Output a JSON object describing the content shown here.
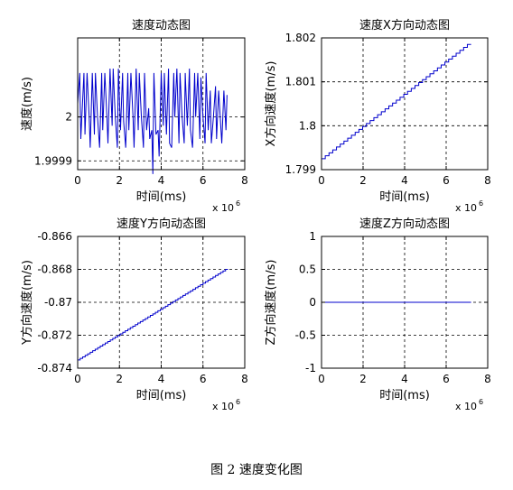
{
  "figure": {
    "caption": "图 2  速度变化图"
  },
  "chart_data": [
    {
      "type": "line",
      "title": "速度动态图",
      "xlabel": "时间(ms)",
      "ylabel": "速度(m/s)",
      "xlim": [
        0,
        8
      ],
      "ylim": [
        1.99988,
        2.00018
      ],
      "x_ticks": [
        0,
        2,
        4,
        6,
        8
      ],
      "x_tick_labels": [
        "0",
        "2",
        "4",
        "6",
        "8"
      ],
      "y_ticks": [
        1.9999,
        2.0
      ],
      "y_tick_labels": [
        "1.9999",
        "2"
      ],
      "x_exponent": {
        "base": "x 10",
        "power": "6"
      },
      "grid": true,
      "series_color": "#0000cc",
      "series": [
        {
          "x": [
            0.0,
            0.1,
            0.15,
            0.2,
            0.3,
            0.35,
            0.45,
            0.55,
            0.6,
            0.7,
            0.8,
            0.85,
            0.95,
            1.05,
            1.15,
            1.2,
            1.3,
            1.4,
            1.45,
            1.55,
            1.65,
            1.7,
            1.8,
            1.9,
            1.95,
            2.05,
            2.15,
            2.2,
            2.3,
            2.4,
            2.45,
            2.55,
            2.65,
            2.7,
            2.8,
            2.9,
            2.95,
            3.05,
            3.15,
            3.2,
            3.3,
            3.4,
            3.45,
            3.55,
            3.6,
            3.65,
            3.75,
            3.85,
            3.9,
            4.0,
            4.1,
            4.15,
            4.25,
            4.35,
            4.4,
            4.5,
            4.6,
            4.65,
            4.75,
            4.85,
            4.9,
            5.0,
            5.1,
            5.15,
            5.25,
            5.35,
            5.4,
            5.5,
            5.6,
            5.65,
            5.75,
            5.85,
            5.9,
            6.0,
            6.1,
            6.15,
            6.25,
            6.35,
            6.4,
            6.5,
            6.6,
            6.65,
            6.75,
            6.85,
            6.9,
            7.0,
            7.1,
            7.15
          ],
          "y": [
            2.00003,
            2.0001,
            1.99995,
            2.0,
            2.0001,
            1.99996,
            2.0001,
            2.0,
            1.99993,
            2.0001,
            1.99996,
            2.0001,
            2.0,
            1.99993,
            2.0001,
            1.99997,
            2.0001,
            2.0,
            1.99994,
            2.00011,
            1.99998,
            2.00011,
            2.0,
            1.99993,
            2.00011,
            1.99997,
            2.0001,
            1.99999,
            1.99993,
            2.0001,
            1.99997,
            2.0001,
            2.0,
            1.99993,
            2.00011,
            1.99997,
            2.0001,
            2.0,
            1.99993,
            2.0001,
            1.99997,
            2.00002,
            1.99995,
            1.99997,
            1.99987,
            2.0001,
            1.99996,
            1.99997,
            1.99991,
            2.0001,
            1.99998,
            2.0001,
            1.99996,
            2.00011,
            1.99994,
            1.99993,
            2.0001,
            2.0,
            2.00011,
            1.99994,
            2.0001,
            2.0,
            1.99994,
            2.0001,
            1.99998,
            2.00011,
            1.99997,
            1.99993,
            2.0001,
            2.0,
            2.0001,
            1.99995,
            2.00009,
            2.0,
            1.99994,
            2.0001,
            1.99997,
            2.00006,
            1.99994,
            2.0,
            2.00007,
            1.99995,
            2.00006,
            1.99998,
            1.99994,
            2.00006,
            1.99997,
            2.00005
          ]
        }
      ]
    },
    {
      "type": "line",
      "title": "速度X方向动态图",
      "xlabel": "时间(ms)",
      "ylabel": "X方向速度(m/s)",
      "xlim": [
        0,
        8
      ],
      "ylim": [
        1.799,
        1.802
      ],
      "x_ticks": [
        0,
        2,
        4,
        6,
        8
      ],
      "x_tick_labels": [
        "0",
        "2",
        "4",
        "6",
        "8"
      ],
      "y_ticks": [
        1.799,
        1.8,
        1.801,
        1.802
      ],
      "y_tick_labels": [
        "1.799",
        "1.8",
        "1.801",
        "1.802"
      ],
      "x_exponent": {
        "base": "x 10",
        "power": "6"
      },
      "grid": true,
      "series_color": "#0000cc",
      "series": [
        {
          "x": [
            0,
            7.2
          ],
          "y": [
            1.79925,
            1.80185
          ],
          "style": "staircase",
          "steps": 40
        }
      ]
    },
    {
      "type": "line",
      "title": "速度Y方向动态图",
      "xlabel": "时间(ms)",
      "ylabel": "Y方向速度(m/s)",
      "xlim": [
        0,
        8
      ],
      "ylim": [
        -0.874,
        -0.866
      ],
      "x_ticks": [
        0,
        2,
        4,
        6,
        8
      ],
      "x_tick_labels": [
        "0",
        "2",
        "4",
        "6",
        "8"
      ],
      "y_ticks": [
        -0.874,
        -0.872,
        -0.87,
        -0.868,
        -0.866
      ],
      "y_tick_labels": [
        "-0.874",
        "-0.872",
        "-0.87",
        "-0.868",
        "-0.866"
      ],
      "x_exponent": {
        "base": "x 10",
        "power": "6"
      },
      "grid": true,
      "series_color": "#0000cc",
      "series": [
        {
          "x": [
            0,
            7.2
          ],
          "y": [
            -0.8735,
            -0.868
          ],
          "style": "staircase",
          "steps": 60
        }
      ]
    },
    {
      "type": "line",
      "title": "速度Z方向动态图",
      "xlabel": "时间(ms)",
      "ylabel": "Z方向速度(m/s)",
      "xlim": [
        0,
        8
      ],
      "ylim": [
        -1,
        1
      ],
      "x_ticks": [
        0,
        2,
        4,
        6,
        8
      ],
      "x_tick_labels": [
        "0",
        "2",
        "4",
        "6",
        "8"
      ],
      "y_ticks": [
        -1,
        -0.5,
        0,
        0.5,
        1
      ],
      "y_tick_labels": [
        "-1",
        "-0.5",
        "0",
        "0.5",
        "1"
      ],
      "x_exponent": {
        "base": "x 10",
        "power": "6"
      },
      "grid": true,
      "series_color": "#0000cc",
      "series": [
        {
          "x": [
            0,
            7.2
          ],
          "y": [
            0,
            0
          ],
          "style": "line"
        }
      ]
    }
  ]
}
